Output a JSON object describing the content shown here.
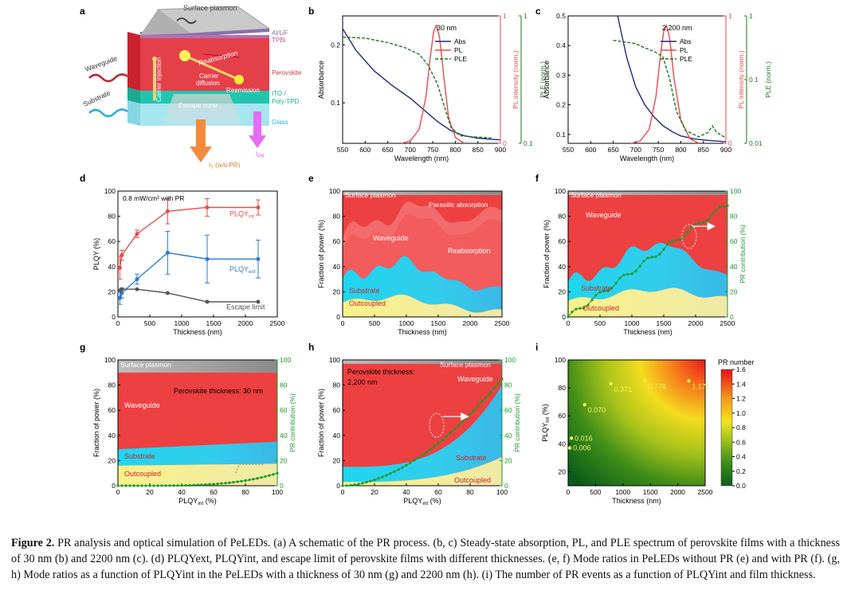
{
  "panel_letters": [
    "a",
    "b",
    "c",
    "d",
    "e",
    "f",
    "g",
    "h",
    "i"
  ],
  "schematic": {
    "labels": {
      "surface_plasmon": "Surface plasmon",
      "al_lif": "Al/LiF",
      "tpbi": "TPBi",
      "perovskite": "Perovskite",
      "ito": "ITO /",
      "poly_tpd": "Poly-TPD",
      "glass": "Glass",
      "waveguide": "Waveguide",
      "substrate": "Substrate",
      "carrier_injection": "Carrier injection",
      "reabsorption": "Reabsorption",
      "carrier_diffusion_1": "Carrier",
      "carrier_diffusion_2": "diffusion",
      "reemission": "Reemission",
      "escape_cone": "Escape cone",
      "it": "I",
      "it_sub": "T",
      "it_suffix": " (w/o PR)",
      "ipr": "I",
      "ipr_sub": "PR"
    }
  },
  "chart_data": [
    {
      "panel": "b",
      "type": "line",
      "xlabel": "Wavelength (nm)",
      "ylabel": "Absorbance",
      "y2label": "PL intensity (norm.)",
      "y3label": "PLE (norm.)",
      "annotation": "30 nm",
      "xlim": [
        550,
        900
      ],
      "ylim": [
        0.03,
        0.25
      ],
      "xticks": [
        550,
        600,
        650,
        700,
        750,
        800,
        850,
        900
      ],
      "yticks": [
        0.1,
        0.2
      ],
      "y2ticks": [
        "0",
        "1"
      ],
      "y3ticks": [
        "0.1",
        "1"
      ],
      "legend": [
        "Abs",
        "PL",
        "PLE"
      ],
      "series": [
        {
          "name": "Abs",
          "color": "#1f2a7a",
          "x": [
            550,
            580,
            620,
            660,
            700,
            730,
            760,
            790,
            820,
            850,
            880,
            900
          ],
          "y": [
            0.228,
            0.19,
            0.155,
            0.13,
            0.108,
            0.088,
            0.068,
            0.052,
            0.043,
            0.039,
            0.037,
            0.036
          ]
        },
        {
          "name": "PL",
          "color": "#e84a4a",
          "x": [
            680,
            700,
            720,
            735,
            745,
            752,
            758,
            765,
            775,
            785,
            800,
            820
          ],
          "y": [
            0.0,
            0.02,
            0.12,
            0.4,
            0.75,
            0.95,
            1.0,
            0.9,
            0.55,
            0.22,
            0.05,
            0.0
          ]
        },
        {
          "name": "PLE",
          "color": "#1a7a1a",
          "x": [
            550,
            600,
            650,
            690,
            720,
            740,
            760,
            775,
            790,
            810,
            840,
            880
          ],
          "y": [
            0.98,
            0.97,
            0.93,
            0.88,
            0.82,
            0.72,
            0.55,
            0.35,
            0.15,
            0.07,
            0.06,
            0.05
          ]
        }
      ]
    },
    {
      "panel": "c",
      "type": "line",
      "xlabel": "Wavelength (nm)",
      "ylabel": "Absorbance",
      "y2label": "PL intensity (norm.)",
      "y3label": "PLE (norm.)",
      "annotation": "2,200 nm",
      "xlim": [
        550,
        900
      ],
      "ylim": [
        0.07,
        0.5
      ],
      "xticks": [
        550,
        600,
        650,
        700,
        750,
        800,
        850,
        900
      ],
      "yticks": [
        0.1,
        0.2,
        0.3,
        0.4,
        0.5
      ],
      "y2ticks": [
        "0",
        "1"
      ],
      "y3ticks": [
        "0.01",
        "0.1",
        "1"
      ],
      "legend": [
        "Abs",
        "PL",
        "PLE"
      ],
      "series": [
        {
          "name": "Abs",
          "color": "#1f2a7a",
          "x": [
            660,
            680,
            700,
            720,
            740,
            760,
            780,
            800,
            830,
            860,
            900
          ],
          "y": [
            0.5,
            0.36,
            0.26,
            0.2,
            0.16,
            0.13,
            0.11,
            0.095,
            0.085,
            0.08,
            0.075
          ]
        },
        {
          "name": "PL",
          "color": "#e84a4a",
          "x": [
            690,
            710,
            730,
            745,
            755,
            762,
            768,
            775,
            785,
            800,
            820,
            840
          ],
          "y": [
            0.0,
            0.02,
            0.12,
            0.4,
            0.75,
            0.95,
            1.0,
            0.9,
            0.55,
            0.2,
            0.04,
            0.0
          ]
        },
        {
          "name": "PLE",
          "color": "#1a7a1a",
          "x": [
            650,
            700,
            720,
            740,
            760,
            775,
            790,
            810,
            840,
            860,
            870,
            880,
            900
          ],
          "y": [
            0.95,
            0.92,
            0.88,
            0.85,
            0.8,
            0.6,
            0.3,
            0.12,
            0.06,
            0.1,
            0.16,
            0.1,
            0.05
          ]
        }
      ]
    },
    {
      "panel": "d",
      "type": "line",
      "xlabel": "Thickness (nm)",
      "ylabel": "PLQY (%)",
      "annotation": "0.8 mW/cm² with PR",
      "xlim": [
        0,
        2500
      ],
      "ylim": [
        0,
        100
      ],
      "xticks": [
        0,
        500,
        1000,
        1500,
        2000,
        2500
      ],
      "yticks": [
        0,
        20,
        40,
        60,
        80,
        100
      ],
      "series": [
        {
          "name": "PLQY_int",
          "label": "PLQY",
          "sub": "int",
          "color": "#e84a4a",
          "x": [
            30,
            60,
            300,
            780,
            1400,
            2200
          ],
          "y": [
            39,
            49,
            66,
            84,
            87,
            87
          ],
          "err": [
            9,
            4,
            3,
            10,
            7,
            6
          ]
        },
        {
          "name": "PLQY_ext",
          "label": "PLQY",
          "sub": "ext",
          "color": "#2a7bd4",
          "x": [
            30,
            60,
            300,
            780,
            1400,
            2200
          ],
          "y": [
            15,
            19,
            30,
            51,
            46,
            46
          ],
          "err": [
            5,
            4,
            4,
            17,
            19,
            15
          ]
        },
        {
          "name": "Escape limit",
          "label": "Escape limit",
          "sub": "",
          "color": "#555555",
          "x": [
            30,
            60,
            300,
            780,
            1400,
            2200
          ],
          "y": [
            21,
            22,
            22,
            19,
            12,
            12
          ],
          "err": [
            0,
            0,
            0,
            0,
            0,
            0
          ]
        }
      ]
    },
    {
      "panel": "e",
      "type": "area",
      "xlabel": "Thickness (nm)",
      "ylabel": "Fraction of power (%)",
      "xlim": [
        0,
        2500
      ],
      "ylim": [
        0,
        100
      ],
      "xticks": [
        0,
        500,
        1000,
        1500,
        2000,
        2500
      ],
      "yticks": [
        0,
        20,
        40,
        60,
        80,
        100
      ],
      "labels": [
        "Surface plasmon",
        "Parasitic absorption",
        "Waveguide",
        "Reabsorption",
        "Substrate",
        "Outcoupled"
      ]
    },
    {
      "panel": "f",
      "type": "area",
      "xlabel": "Thickness (nm)",
      "ylabel": "Fraction of power (%)",
      "y2label": "PR contribution (%)",
      "xlim": [
        0,
        2500
      ],
      "ylim": [
        0,
        100
      ],
      "xticks": [
        0,
        500,
        1000,
        1500,
        2000,
        2500
      ],
      "yticks": [
        0,
        20,
        40,
        60,
        80,
        100
      ],
      "y2ticks": [
        0,
        20,
        40,
        60,
        80,
        100
      ],
      "labels": [
        "Surface plasmon",
        "Waveguide",
        "Substrate",
        "Outcoupled"
      ]
    },
    {
      "panel": "g",
      "type": "area",
      "xlabel": "PLQY",
      "xlabel_sub": "int",
      "xlabel_suffix": " (%)",
      "ylabel": "Fraction of power (%)",
      "y2label": "PR contribution (%)",
      "annotation": "Perovskite thickness: 30 nm",
      "xlim": [
        0,
        100
      ],
      "ylim": [
        0,
        100
      ],
      "xticks": [
        0,
        20,
        40,
        60,
        80,
        100
      ],
      "yticks": [
        0,
        20,
        40,
        60,
        80,
        100
      ],
      "y2ticks": [
        0,
        20,
        40,
        60,
        80,
        100
      ],
      "labels": [
        "Surface plasmon",
        "Waveguide",
        "Substrate",
        "Outcoupled"
      ]
    },
    {
      "panel": "h",
      "type": "area",
      "xlabel": "PLQY",
      "xlabel_sub": "int",
      "xlabel_suffix": " (%)",
      "ylabel": "Fraction of power (%)",
      "y2label": "PR contribution (%)",
      "annotation": [
        "Perovskite thickness:",
        "2,200 nm"
      ],
      "xlim": [
        0,
        100
      ],
      "ylim": [
        0,
        100
      ],
      "xticks": [
        0,
        20,
        40,
        60,
        80,
        100
      ],
      "yticks": [
        0,
        20,
        40,
        60,
        80,
        100
      ],
      "y2ticks": [
        0,
        20,
        40,
        60,
        80,
        100
      ],
      "labels": [
        "Surface plasmon",
        "Waveguide",
        "Substrate",
        "Outcoupled"
      ]
    },
    {
      "panel": "i",
      "type": "heatmap",
      "xlabel": "Thickness (nm)",
      "ylabel": "PLQY",
      "ylabel_sub": "int",
      "ylabel_suffix": " (%)",
      "colorbar_title": "PR number",
      "xlim": [
        0,
        2500
      ],
      "ylim": [
        10,
        100
      ],
      "xticks": [
        0,
        500,
        1000,
        1500,
        2000,
        2500
      ],
      "yticks": [
        20,
        40,
        60,
        80,
        100
      ],
      "cbar_ticks": [
        "0.0",
        "0.2",
        "0.4",
        "0.6",
        "0.8",
        "1.0",
        "1.2",
        "1.4",
        "1.6"
      ],
      "points": [
        {
          "x": 30,
          "y": 37,
          "label": "0.006"
        },
        {
          "x": 60,
          "y": 44,
          "label": "0.016"
        },
        {
          "x": 300,
          "y": 68,
          "label": "0.070"
        },
        {
          "x": 780,
          "y": 83,
          "label": "0.371"
        },
        {
          "x": 1400,
          "y": 85,
          "label": "0.778"
        },
        {
          "x": 2200,
          "y": 85,
          "label": "1.171"
        }
      ]
    }
  ],
  "caption": {
    "figure_label": "Figure 2.",
    "text": "PR analysis and optical simulation of PeLEDs. (a) A schematic of the PR process. (b, c) Steady-state absorption, PL, and PLE spectrum of perovskite films with a thickness of 30 nm (b) and 2200 nm (c). (d) PLQYext, PLQYint, and escape limit of perovskite films with different thicknesses. (e, f) Mode ratios in PeLEDs without PR (e) and with PR (f). (g, h) Mode ratios as a function of PLQYint in the PeLEDs with a thickness of 30 nm (g) and 2200 nm (h). (i) The number of PR events as a function of PLQYint and film thickness."
  }
}
